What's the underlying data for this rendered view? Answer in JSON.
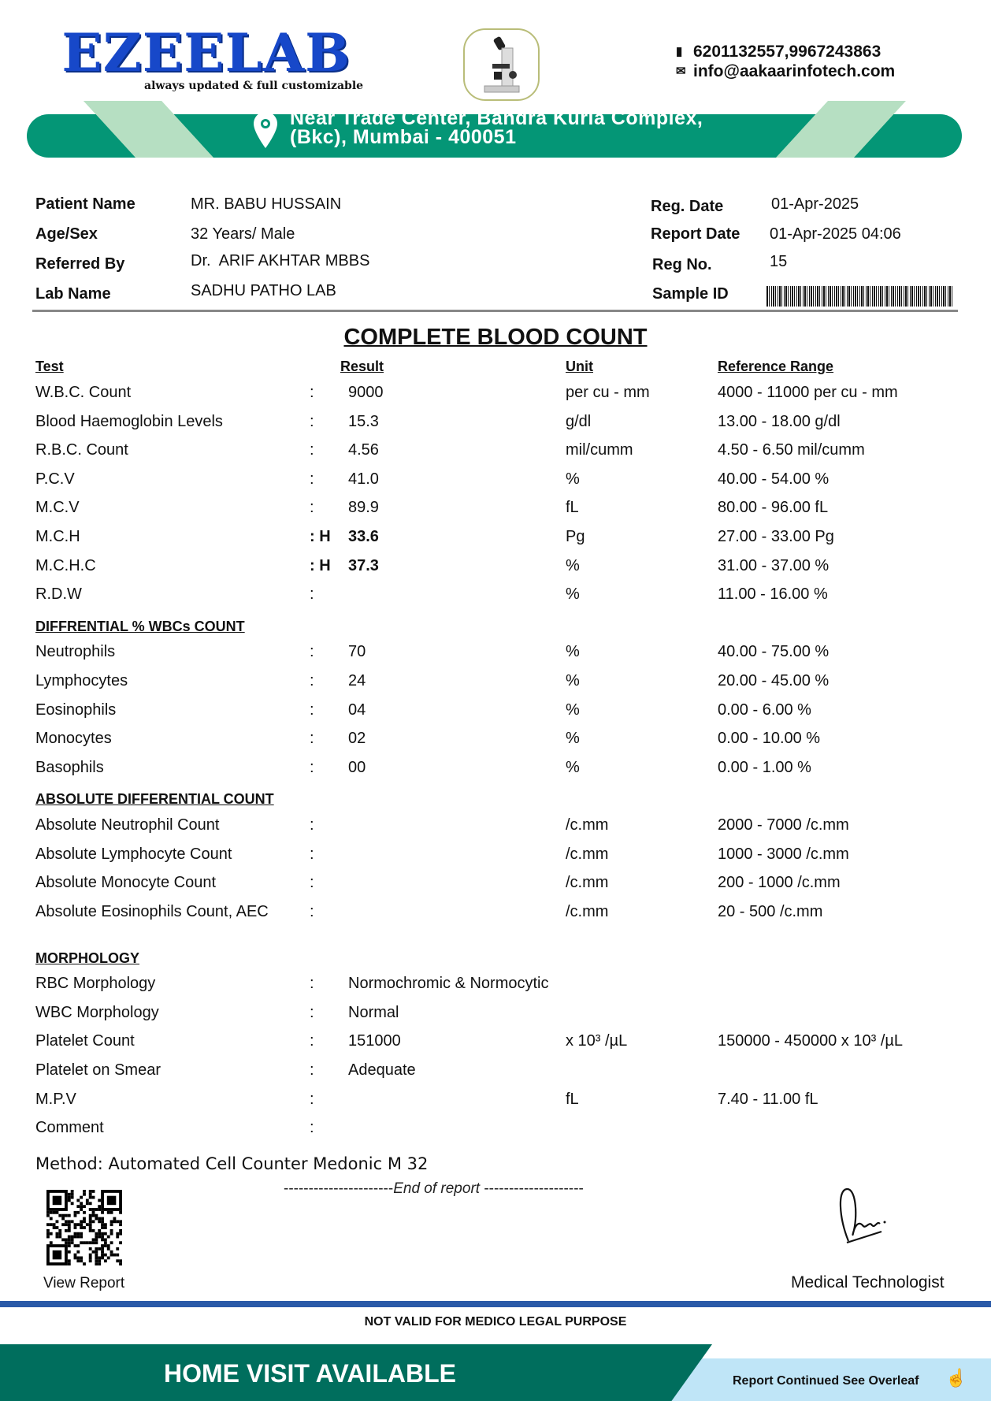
{
  "header": {
    "logo_text": "EZEELAB",
    "tagline": "always updated & full customizable",
    "phone": "6201132557,9967243863",
    "email": "info@aakaarinfotech.com",
    "address_line1": "Near Trade Center, Bandra Kurla Complex,",
    "address_line2": "(Bkc), Mumbai - 400051",
    "brand_color": "#1748c9",
    "banner_color": "#049676"
  },
  "patient": {
    "name_label": "Patient Name",
    "name": "MR. BABU HUSSAIN",
    "age_label": "Age/Sex",
    "age": "32 Years/ Male",
    "ref_label": "Referred By",
    "ref": "Dr.  ARIF AKHTAR MBBS",
    "lab_label": "Lab Name",
    "lab": "SADHU PATHO LAB",
    "regdate_label": "Reg. Date",
    "regdate": "01-Apr-2025",
    "repdate_label": "Report Date",
    "repdate": "01-Apr-2025 04:06",
    "regno_label": "Reg No.",
    "regno": "15",
    "sample_label": "Sample ID"
  },
  "report": {
    "title": "COMPLETE BLOOD COUNT",
    "columns": {
      "test": "Test",
      "result": "Result",
      "unit": "Unit",
      "ref": "Reference Range"
    },
    "rows": [
      {
        "test": "W.B.C. Count",
        "sep": ":",
        "result": "9000",
        "unit": "per cu - mm",
        "ref": "4000 - 11000 per cu - mm"
      },
      {
        "test": "Blood Haemoglobin Levels",
        "sep": ":",
        "result": "15.3",
        "unit": "g/dl",
        "ref": "13.00 - 18.00 g/dl"
      },
      {
        "test": "R.B.C. Count",
        "sep": ":",
        "result": "4.56",
        "unit": "mil/cumm",
        "ref": "4.50 - 6.50 mil/cumm"
      },
      {
        "test": "P.C.V",
        "sep": ":",
        "result": "41.0",
        "unit": "%",
        "ref": "40.00 - 54.00 %"
      },
      {
        "test": "M.C.V",
        "sep": ":",
        "result": "89.9",
        "unit": "fL",
        "ref": "80.00 - 96.00 fL"
      },
      {
        "test": "M.C.H",
        "sep": ": H",
        "result": "33.6",
        "unit": "Pg",
        "ref": "27.00 - 33.00 Pg",
        "flag": true
      },
      {
        "test": "M.C.H.C",
        "sep": ": H",
        "result": "37.3",
        "unit": "%",
        "ref": "31.00 - 37.00 %",
        "flag": true
      },
      {
        "test": "R.D.W",
        "sep": ":",
        "result": "",
        "unit": "%",
        "ref": "11.00 - 16.00 %"
      },
      {
        "section": "DIFFRENTIAL % WBCs COUNT"
      },
      {
        "test": "Neutrophils",
        "sep": ":",
        "result": "70",
        "unit": "%",
        "ref": "40.00 - 75.00 %"
      },
      {
        "test": "Lymphocytes",
        "sep": ":",
        "result": "24",
        "unit": "%",
        "ref": "20.00 - 45.00 %"
      },
      {
        "test": "Eosinophils",
        "sep": ":",
        "result": "04",
        "unit": "%",
        "ref": "0.00 - 6.00 %"
      },
      {
        "test": "Monocytes",
        "sep": ":",
        "result": "02",
        "unit": "%",
        "ref": "0.00 - 10.00 %"
      },
      {
        "test": "Basophils",
        "sep": ":",
        "result": "00",
        "unit": "%",
        "ref": "0.00 - 1.00 %"
      },
      {
        "section": "ABSOLUTE DIFFERENTIAL COUNT"
      },
      {
        "test": "Absolute Neutrophil Count",
        "sep": ":",
        "result": "",
        "unit": "/c.mm",
        "ref": "2000 - 7000 /c.mm"
      },
      {
        "test": "Absolute Lymphocyte Count",
        "sep": ":",
        "result": "",
        "unit": "/c.mm",
        "ref": "1000 - 3000 /c.mm"
      },
      {
        "test": "Absolute Monocyte Count",
        "sep": ":",
        "result": "",
        "unit": "/c.mm",
        "ref": "200 - 1000 /c.mm"
      },
      {
        "test": "Absolute Eosinophils Count, AEC",
        "sep": ":",
        "result": "",
        "unit": "/c.mm",
        "ref": "20 - 500 /c.mm",
        "tall": true
      },
      {
        "section": "MORPHOLOGY"
      },
      {
        "test": "RBC Morphology",
        "sep": ":",
        "result": "Normochromic & Normocytic",
        "unit": "",
        "ref": ""
      },
      {
        "test": "WBC Morphology",
        "sep": ":",
        "result": "Normal",
        "unit": "",
        "ref": ""
      },
      {
        "test": "Platelet Count",
        "sep": ":",
        "result": "151000",
        "unit": "x 10³ /µL",
        "ref": "150000 - 450000 x 10³ /µL"
      },
      {
        "test": "Platelet on Smear",
        "sep": ":",
        "result": "Adequate",
        "unit": "",
        "ref": ""
      },
      {
        "test": "M.P.V",
        "sep": ":",
        "result": "",
        "unit": "fL",
        "ref": "7.40 - 11.00 fL"
      },
      {
        "test": "Comment",
        "sep": ":",
        "result": "",
        "unit": "",
        "ref": ""
      }
    ],
    "method": "Method: Automated Cell Counter Medonic M 32",
    "end_dashes_left": "----------------------",
    "end_text": "End of report",
    "end_dashes_right": " --------------------"
  },
  "footer": {
    "view_report": "View Report",
    "signatory": "Medical Technologist",
    "disclaimer": "NOT VALID FOR MEDICO LEGAL PURPOSE",
    "home_visit": "HOME VISIT AVAILABLE",
    "overleaf": "Report Continued See Overleaf",
    "band_color": "#006e5d",
    "line_color": "#2a5aa8"
  }
}
